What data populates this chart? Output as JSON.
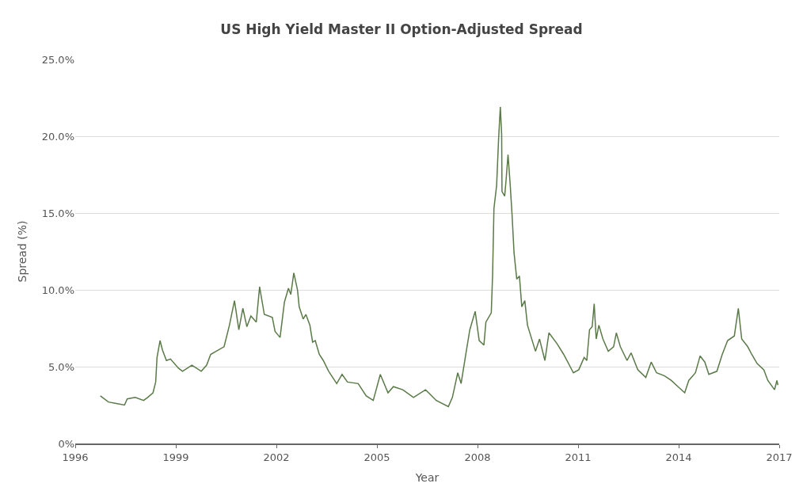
{
  "chart_data": {
    "type": "line",
    "title": "US High Yield Master II Option-Adjusted Spread",
    "xlabel": "Year",
    "ylabel": "Spread (%)",
    "xlim": [
      1996,
      2017
    ],
    "xticks": [
      1996,
      1999,
      2002,
      2005,
      2008,
      2011,
      2014,
      2017
    ],
    "ylim": [
      0,
      25
    ],
    "yticks": [
      {
        "value": 0,
        "label": "0%"
      },
      {
        "value": 5,
        "label": "5.0%"
      },
      {
        "value": 10,
        "label": "10.0%"
      },
      {
        "value": 15,
        "label": "15.0%"
      },
      {
        "value": 20,
        "label": "20.0%"
      },
      {
        "value": 25,
        "label": "25.0%"
      }
    ],
    "grid": "y",
    "marker": "none",
    "line_style": "solid",
    "series": [
      {
        "color": "#5a7a48",
        "x": [
          1996.75,
          1996.99,
          1997.23,
          1997.47,
          1997.55,
          1997.79,
          1998.04,
          1998.16,
          1998.32,
          1998.4,
          1998.44,
          1998.53,
          1998.6,
          1998.72,
          1998.84,
          1999.08,
          1999.2,
          1999.48,
          1999.76,
          1999.92,
          2000.04,
          2000.2,
          2000.44,
          2000.6,
          2000.75,
          2000.88,
          2001.0,
          2001.12,
          2001.24,
          2001.4,
          2001.5,
          2001.64,
          2001.88,
          2001.96,
          2002.11,
          2002.24,
          2002.36,
          2002.43,
          2002.52,
          2002.63,
          2002.68,
          2002.8,
          2002.88,
          2003.0,
          2003.08,
          2003.16,
          2003.28,
          2003.4,
          2003.56,
          2003.8,
          2003.96,
          2004.12,
          2004.44,
          2004.68,
          2004.89,
          2005.1,
          2005.33,
          2005.49,
          2005.77,
          2006.09,
          2006.45,
          2006.77,
          2007.13,
          2007.25,
          2007.41,
          2007.51,
          2007.65,
          2007.77,
          2007.93,
          2008.05,
          2008.19,
          2008.25,
          2008.41,
          2008.45,
          2008.49,
          2008.57,
          2008.63,
          2008.68,
          2008.72,
          2008.73,
          2008.81,
          2008.85,
          2008.91,
          2008.97,
          2009.03,
          2009.09,
          2009.17,
          2009.25,
          2009.32,
          2009.41,
          2009.49,
          2009.73,
          2009.85,
          2010.01,
          2010.13,
          2010.37,
          2010.57,
          2010.62,
          2010.86,
          2011.02,
          2011.18,
          2011.26,
          2011.34,
          2011.42,
          2011.48,
          2011.54,
          2011.62,
          2011.74,
          2011.9,
          2012.06,
          2012.14,
          2012.26,
          2012.46,
          2012.58,
          2012.78,
          2013.02,
          2013.18,
          2013.34,
          2013.58,
          2013.78,
          2013.98,
          2014.18,
          2014.3,
          2014.5,
          2014.64,
          2014.78,
          2014.9,
          2015.14,
          2015.3,
          2015.46,
          2015.66,
          2015.78,
          2015.88,
          2016.06,
          2016.18,
          2016.34,
          2016.54,
          2016.66,
          2016.86,
          2016.93,
          2016.96
        ],
        "values": [
          3.1,
          2.7,
          2.6,
          2.5,
          2.9,
          3.0,
          2.8,
          3.0,
          3.3,
          4.0,
          5.6,
          6.7,
          6.1,
          5.4,
          5.5,
          4.9,
          4.7,
          5.1,
          4.7,
          5.1,
          5.8,
          6.0,
          6.3,
          7.7,
          9.3,
          7.4,
          8.8,
          7.6,
          8.3,
          7.9,
          10.2,
          8.4,
          8.2,
          7.3,
          6.9,
          9.2,
          10.1,
          9.7,
          11.1,
          10.0,
          8.9,
          8.1,
          8.4,
          7.7,
          6.6,
          6.7,
          5.8,
          5.4,
          4.7,
          3.9,
          4.5,
          4.0,
          3.9,
          3.1,
          2.8,
          4.5,
          3.3,
          3.7,
          3.5,
          3.0,
          3.5,
          2.8,
          2.4,
          3.0,
          4.6,
          3.9,
          5.8,
          7.4,
          8.6,
          6.7,
          6.4,
          7.9,
          8.5,
          11.0,
          15.3,
          16.8,
          19.9,
          21.9,
          20.1,
          16.4,
          16.1,
          17.1,
          18.8,
          17.0,
          14.9,
          12.4,
          10.7,
          10.9,
          8.9,
          9.3,
          7.7,
          6.0,
          6.8,
          5.4,
          7.2,
          6.5,
          5.8,
          5.6,
          4.6,
          4.8,
          5.6,
          5.4,
          7.4,
          7.6,
          9.1,
          6.8,
          7.7,
          6.8,
          6.0,
          6.3,
          7.2,
          6.3,
          5.4,
          5.9,
          4.8,
          4.3,
          5.3,
          4.6,
          4.4,
          4.1,
          3.7,
          3.3,
          4.1,
          4.6,
          5.7,
          5.3,
          4.5,
          4.7,
          5.8,
          6.7,
          7.0,
          8.8,
          6.8,
          6.3,
          5.8,
          5.2,
          4.8,
          4.1,
          3.5,
          4.1,
          3.8
        ]
      }
    ]
  }
}
